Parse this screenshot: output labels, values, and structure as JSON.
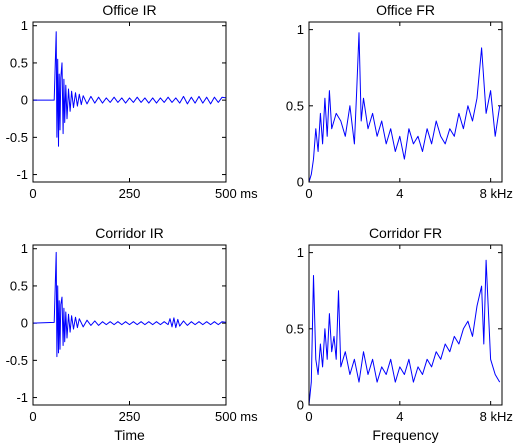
{
  "chart_data": [
    {
      "id": "office-ir",
      "type": "line",
      "title": "Office IR",
      "xlabel": "",
      "ylabel": "",
      "xlim": [
        0,
        500
      ],
      "ylim": [
        -1.1,
        1.05
      ],
      "xticks": [
        0,
        250,
        500
      ],
      "xtick_labels": [
        "0",
        "250",
        "500 ms"
      ],
      "yticks": [
        1,
        0.5,
        0,
        -0.5,
        -1
      ],
      "ytick_labels": [
        "1",
        "0.5",
        "0",
        "-0.5",
        "-1"
      ],
      "grid": false,
      "series": [
        {
          "color": "#0000ff",
          "x": [
            0,
            55,
            60,
            62,
            64,
            66,
            68,
            70,
            72,
            75,
            78,
            80,
            82,
            85,
            88,
            92,
            96,
            100,
            105,
            110,
            115,
            120,
            125,
            130,
            140,
            150,
            160,
            170,
            180,
            190,
            200,
            210,
            220,
            230,
            240,
            250,
            260,
            270,
            280,
            290,
            300,
            310,
            320,
            330,
            340,
            350,
            360,
            370,
            380,
            390,
            400,
            410,
            420,
            430,
            440,
            450,
            460,
            470,
            480,
            490,
            500
          ],
          "y": [
            0,
            0,
            0.92,
            -0.5,
            0.55,
            -0.62,
            0.35,
            -0.4,
            0.3,
            0.5,
            -0.45,
            0.28,
            -0.3,
            0.2,
            -0.25,
            0.15,
            -0.15,
            0.12,
            -0.1,
            0.1,
            -0.08,
            0.08,
            -0.06,
            0.06,
            -0.05,
            0.05,
            -0.04,
            0.04,
            -0.04,
            0.03,
            -0.03,
            0.04,
            -0.03,
            0.03,
            -0.04,
            0.03,
            -0.03,
            0.04,
            -0.03,
            0.03,
            -0.04,
            0.03,
            -0.04,
            0.03,
            -0.03,
            0.04,
            -0.03,
            0.03,
            -0.04,
            0.05,
            -0.05,
            0.04,
            -0.04,
            0.05,
            -0.04,
            0.04,
            -0.05,
            0.04,
            -0.03,
            0.04,
            0.03
          ]
        }
      ]
    },
    {
      "id": "office-fr",
      "type": "line",
      "title": "Office FR",
      "xlabel": "",
      "ylabel": "",
      "xlim": [
        0,
        8.5
      ],
      "ylim": [
        0,
        1.05
      ],
      "xticks": [
        0,
        4,
        8
      ],
      "xtick_labels": [
        "0",
        "4",
        "8 kHz"
      ],
      "yticks": [
        1,
        0.5,
        0
      ],
      "ytick_labels": [
        "1",
        "0.5",
        "0"
      ],
      "grid": false,
      "series": [
        {
          "color": "#0000ff",
          "x": [
            0,
            0.1,
            0.2,
            0.3,
            0.4,
            0.5,
            0.6,
            0.7,
            0.8,
            0.9,
            1.0,
            1.2,
            1.4,
            1.6,
            1.8,
            2.0,
            2.1,
            2.2,
            2.3,
            2.4,
            2.6,
            2.8,
            3.0,
            3.2,
            3.4,
            3.6,
            3.8,
            4.0,
            4.2,
            4.4,
            4.6,
            4.8,
            5.0,
            5.2,
            5.4,
            5.6,
            5.8,
            6.0,
            6.2,
            6.4,
            6.6,
            6.8,
            7.0,
            7.2,
            7.4,
            7.6,
            7.8,
            8.0,
            8.2,
            8.4
          ],
          "y": [
            0,
            0.05,
            0.15,
            0.35,
            0.2,
            0.45,
            0.25,
            0.55,
            0.3,
            0.6,
            0.35,
            0.45,
            0.4,
            0.3,
            0.5,
            0.25,
            0.6,
            0.98,
            0.4,
            0.55,
            0.35,
            0.45,
            0.3,
            0.4,
            0.25,
            0.35,
            0.2,
            0.3,
            0.15,
            0.35,
            0.25,
            0.3,
            0.2,
            0.35,
            0.25,
            0.4,
            0.3,
            0.25,
            0.35,
            0.3,
            0.45,
            0.35,
            0.5,
            0.4,
            0.55,
            0.88,
            0.45,
            0.6,
            0.3,
            0.5
          ]
        }
      ]
    },
    {
      "id": "corridor-ir",
      "type": "line",
      "title": "Corridor IR",
      "xlabel": "Time",
      "ylabel": "",
      "xlim": [
        0,
        500
      ],
      "ylim": [
        -1.1,
        1.05
      ],
      "xticks": [
        0,
        250,
        500
      ],
      "xtick_labels": [
        "0",
        "250",
        "500 ms"
      ],
      "yticks": [
        1,
        0.5,
        0,
        -0.5,
        -1
      ],
      "ytick_labels": [
        "1",
        "0.5",
        "0",
        "-0.5",
        "-1"
      ],
      "grid": false,
      "series": [
        {
          "color": "#0000ff",
          "x": [
            0,
            55,
            60,
            62,
            64,
            66,
            68,
            70,
            72,
            75,
            78,
            80,
            82,
            85,
            88,
            92,
            96,
            100,
            105,
            110,
            115,
            120,
            130,
            140,
            150,
            160,
            170,
            180,
            190,
            200,
            210,
            220,
            230,
            240,
            250,
            260,
            270,
            280,
            290,
            300,
            310,
            320,
            330,
            340,
            350,
            355,
            360,
            365,
            370,
            375,
            380,
            390,
            400,
            410,
            420,
            430,
            440,
            450,
            460,
            470,
            480,
            490,
            500
          ],
          "y": [
            0,
            0.01,
            0.95,
            -0.45,
            0.5,
            -0.4,
            0.3,
            -0.35,
            0.25,
            0.35,
            -0.3,
            0.2,
            -0.25,
            0.15,
            -0.2,
            0.12,
            -0.12,
            0.1,
            -0.08,
            0.08,
            -0.06,
            0.06,
            -0.05,
            0.04,
            -0.03,
            0.03,
            -0.03,
            0.02,
            -0.02,
            0.02,
            -0.02,
            0.02,
            -0.02,
            0.02,
            -0.02,
            0.02,
            -0.02,
            0.02,
            -0.02,
            0.02,
            -0.02,
            0.02,
            -0.02,
            0.02,
            -0.02,
            0.06,
            -0.05,
            0.07,
            -0.06,
            0.05,
            -0.04,
            0.03,
            -0.03,
            0.02,
            -0.02,
            0.02,
            -0.02,
            0.02,
            -0.02,
            0.02,
            -0.02,
            0.02,
            0.01
          ]
        }
      ]
    },
    {
      "id": "corridor-fr",
      "type": "line",
      "title": "Corridor FR",
      "xlabel": "Frequency",
      "ylabel": "",
      "xlim": [
        0,
        8.5
      ],
      "ylim": [
        0,
        1.05
      ],
      "xticks": [
        0,
        4,
        8
      ],
      "xtick_labels": [
        "0",
        "4",
        "8 kHz"
      ],
      "yticks": [
        1,
        0.5,
        0
      ],
      "ytick_labels": [
        "1",
        "0.5",
        "0"
      ],
      "grid": false,
      "series": [
        {
          "color": "#0000ff",
          "x": [
            0,
            0.1,
            0.2,
            0.3,
            0.4,
            0.5,
            0.6,
            0.7,
            0.8,
            0.9,
            1.0,
            1.1,
            1.2,
            1.3,
            1.4,
            1.6,
            1.8,
            2.0,
            2.2,
            2.4,
            2.6,
            2.8,
            3.0,
            3.2,
            3.4,
            3.6,
            3.8,
            4.0,
            4.2,
            4.4,
            4.6,
            4.8,
            5.0,
            5.2,
            5.4,
            5.6,
            5.8,
            6.0,
            6.2,
            6.4,
            6.6,
            6.8,
            7.0,
            7.2,
            7.4,
            7.6,
            7.7,
            7.8,
            8.0,
            8.2,
            8.4
          ],
          "y": [
            0,
            0.15,
            0.85,
            0.3,
            0.2,
            0.4,
            0.25,
            0.5,
            0.3,
            0.6,
            0.35,
            0.45,
            0.3,
            0.75,
            0.25,
            0.35,
            0.2,
            0.3,
            0.15,
            0.35,
            0.2,
            0.3,
            0.15,
            0.25,
            0.2,
            0.3,
            0.15,
            0.25,
            0.2,
            0.3,
            0.15,
            0.25,
            0.2,
            0.3,
            0.25,
            0.35,
            0.3,
            0.4,
            0.35,
            0.45,
            0.4,
            0.5,
            0.55,
            0.45,
            0.65,
            0.78,
            0.4,
            0.95,
            0.3,
            0.2,
            0.15
          ]
        }
      ]
    }
  ]
}
